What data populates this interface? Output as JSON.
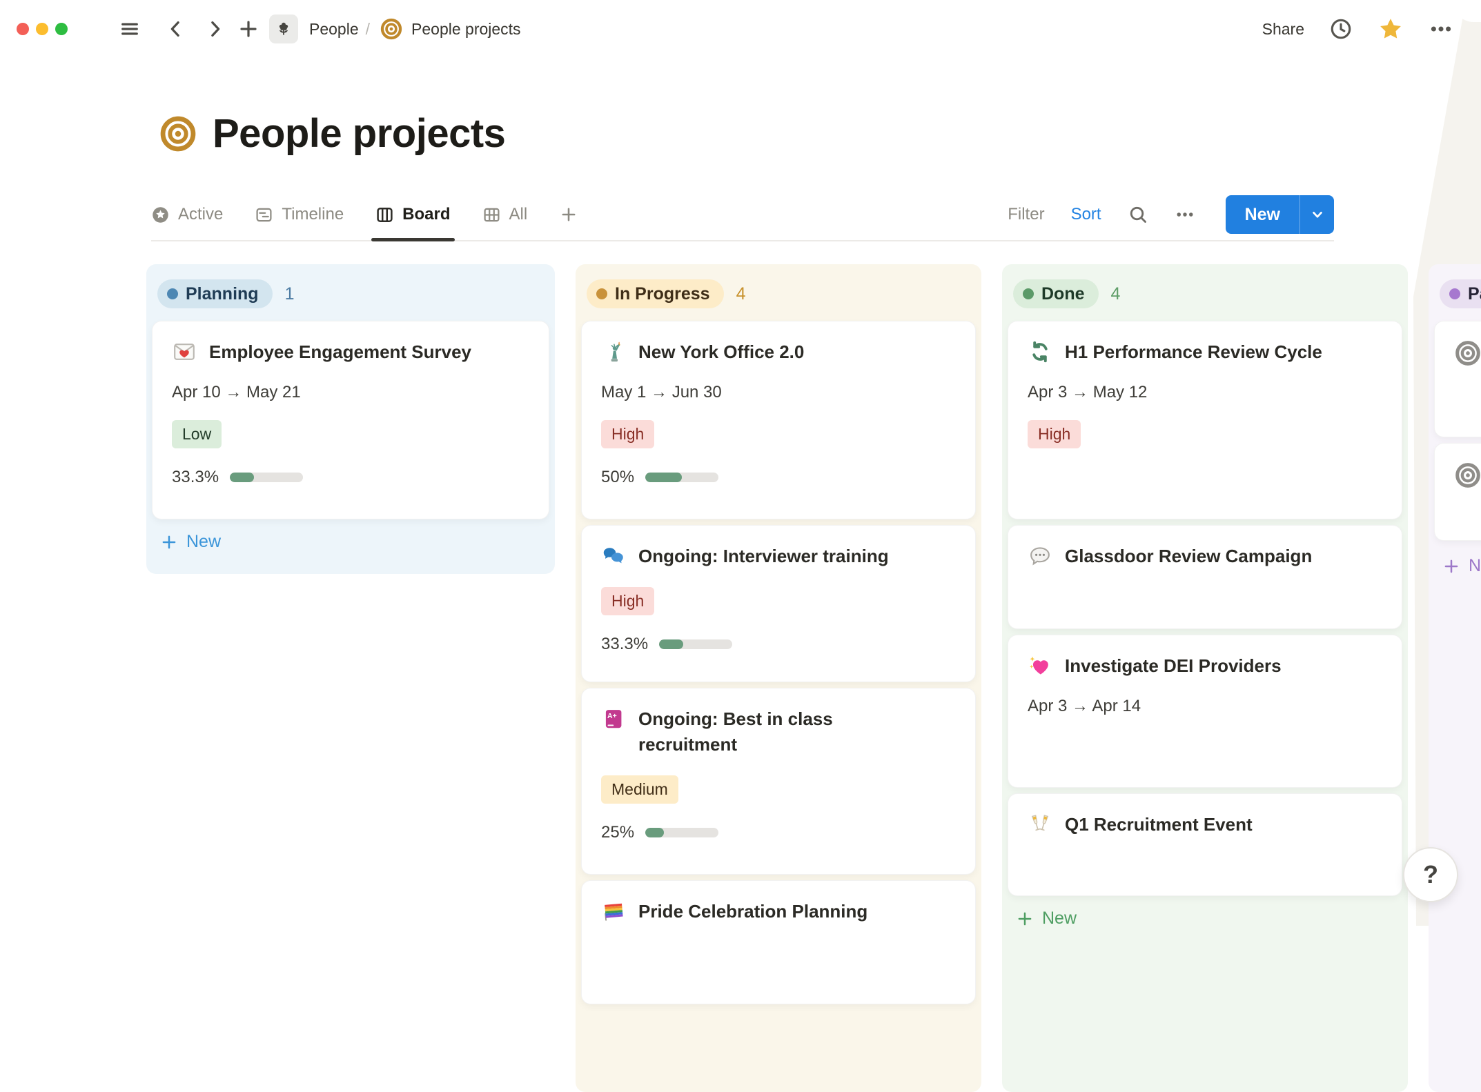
{
  "toolbar": {
    "breadcrumb": {
      "teamspace": "People",
      "separator": "/",
      "page": "People projects"
    },
    "share_label": "Share"
  },
  "page": {
    "title": "People projects",
    "icon": "target-bullseye"
  },
  "views": {
    "tabs": [
      {
        "label": "Active",
        "icon": "star-circle-icon",
        "selected": false
      },
      {
        "label": "Timeline",
        "icon": "timeline-icon",
        "selected": false
      },
      {
        "label": "Board",
        "icon": "board-columns-icon",
        "selected": true
      },
      {
        "label": "All",
        "icon": "table-icon",
        "selected": false
      }
    ],
    "filter_label": "Filter",
    "sort_label": "Sort",
    "new_button_label": "New"
  },
  "board": {
    "columns": [
      {
        "name": "Planning",
        "count": "1",
        "color": "blue",
        "new_label": "New",
        "cards": [
          {
            "icon": "love-letter-icon",
            "title": "Employee Engagement Survey",
            "dates": "Apr 10 → May 21",
            "tag": "Low",
            "progress_label": "33.3%",
            "progress_pct": 33.3
          }
        ]
      },
      {
        "name": "In Progress",
        "count": "4",
        "color": "yellow",
        "cards": [
          {
            "icon": "statue-of-liberty-icon",
            "title": "New York Office 2.0",
            "dates": "May 1 → Jun 30",
            "tag": "High",
            "progress_label": "50%",
            "progress_pct": 50
          },
          {
            "icon": "chat-bubbles-icon",
            "title": "Ongoing: Interviewer training",
            "tag": "High",
            "progress_label": "33.3%",
            "progress_pct": 33.3
          },
          {
            "icon": "grade-book-icon",
            "title": "Ongoing: Best in class recruitment",
            "tag": "Medium",
            "progress_label": "25%",
            "progress_pct": 25
          },
          {
            "icon": "rainbow-flag-icon",
            "title": "Pride Celebration Planning"
          }
        ]
      },
      {
        "name": "Done",
        "count": "4",
        "color": "green",
        "new_label": "New",
        "cards": [
          {
            "icon": "cycle-arrows-icon",
            "title": "H1 Performance Review Cycle",
            "dates": "Apr 3 → May 12",
            "tag": "High"
          },
          {
            "icon": "speech-bubble-icon",
            "title": "Glassdoor Review Campaign"
          },
          {
            "icon": "sparkling-heart-icon",
            "title": "Investigate DEI Providers",
            "dates": "Apr 3 → Apr 14"
          },
          {
            "icon": "champagne-glasses-icon",
            "title": "Q1 Recruitment Event"
          }
        ]
      },
      {
        "name": "Pa",
        "count": "",
        "color": "purple",
        "new_label": "N",
        "cards": [
          {
            "icon": "target-gray-icon",
            "title": ""
          },
          {
            "icon": "target-gray-icon",
            "title": ""
          }
        ]
      }
    ]
  },
  "colors": {
    "accent_blue": "#2383e2",
    "planning_dot": "#4d87b3",
    "in_progress_dot": "#c9923a",
    "done_dot": "#5b9a68",
    "paused_dot": "#a678cf",
    "tag_low_bg": "#dbeddb",
    "tag_high_bg": "#fbdcd9",
    "tag_medium_bg": "#fdecc8",
    "progress_fill": "#699c7d",
    "favorite_star": "#efb73a",
    "backdrop_beige": "#f5f3ee",
    "backdrop_teal": "#2e4b45"
  },
  "help": {
    "label": "?"
  }
}
